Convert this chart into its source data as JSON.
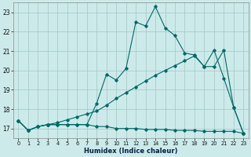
{
  "xlabel": "Humidex (Indice chaleur)",
  "bg_color": "#cdeaea",
  "grid_color": "#a8cccc",
  "line_color": "#006868",
  "xlim": [
    -0.5,
    23.5
  ],
  "ylim": [
    16.5,
    23.5
  ],
  "yticks": [
    17,
    18,
    19,
    20,
    21,
    22,
    23
  ],
  "xticks": [
    0,
    1,
    2,
    3,
    4,
    5,
    6,
    7,
    8,
    9,
    10,
    11,
    12,
    13,
    14,
    15,
    16,
    17,
    18,
    19,
    20,
    21,
    22,
    23
  ],
  "line_zigzag_x": [
    0,
    1,
    2,
    3,
    4,
    5,
    6,
    7,
    8,
    9,
    10,
    11,
    12,
    13,
    14,
    15,
    16,
    17,
    18,
    19,
    20,
    21,
    22,
    23
  ],
  "line_zigzag_y": [
    17.4,
    16.9,
    17.1,
    17.2,
    17.2,
    17.2,
    17.2,
    17.2,
    18.3,
    19.8,
    19.5,
    20.1,
    22.5,
    22.3,
    23.3,
    22.2,
    21.8,
    20.9,
    20.8,
    20.2,
    21.05,
    19.6,
    18.1,
    16.75
  ],
  "line_upper_x": [
    0,
    1,
    2,
    3,
    4,
    5,
    6,
    7,
    8,
    9,
    10,
    11,
    12,
    13,
    14,
    15,
    16,
    17,
    18,
    19,
    20,
    21,
    22,
    23
  ],
  "line_upper_y": [
    17.4,
    16.9,
    17.1,
    17.2,
    17.3,
    17.45,
    17.6,
    17.75,
    17.9,
    18.2,
    18.55,
    18.85,
    19.15,
    19.45,
    19.75,
    20.0,
    20.25,
    20.5,
    20.75,
    20.2,
    20.2,
    21.05,
    18.1,
    16.75
  ],
  "line_flat_x": [
    0,
    1,
    2,
    3,
    4,
    5,
    6,
    7,
    8,
    9,
    10,
    11,
    12,
    13,
    14,
    15,
    16,
    17,
    18,
    19,
    20,
    21,
    22,
    23
  ],
  "line_flat_y": [
    17.4,
    16.9,
    17.1,
    17.2,
    17.2,
    17.2,
    17.2,
    17.2,
    17.1,
    17.1,
    17.0,
    17.0,
    17.0,
    16.95,
    16.95,
    16.95,
    16.9,
    16.9,
    16.9,
    16.85,
    16.85,
    16.85,
    16.85,
    16.75
  ]
}
